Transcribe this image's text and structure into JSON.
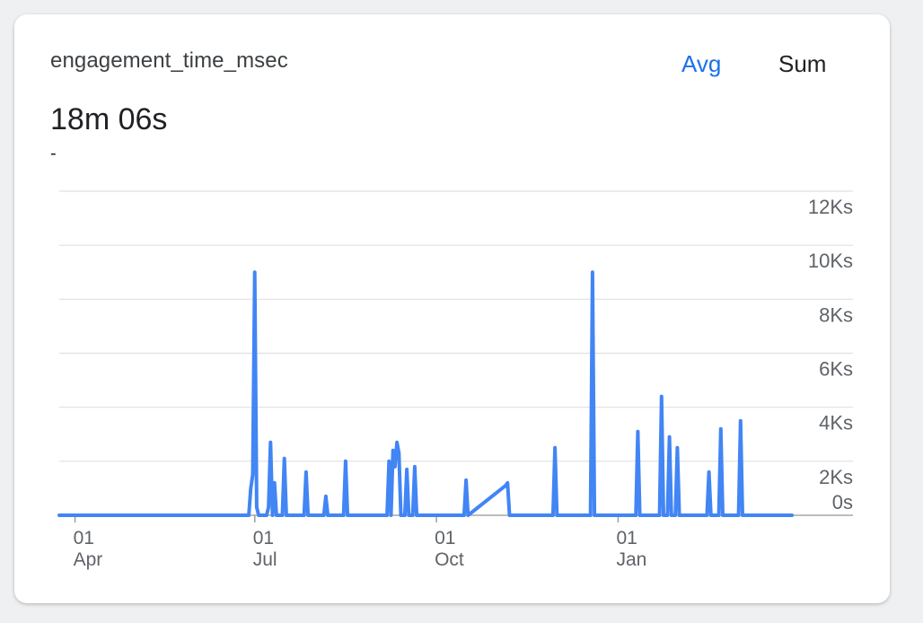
{
  "card": {
    "metric_name": "engagement_time_msec",
    "toggle_avg": "Avg",
    "toggle_sum": "Sum",
    "big_value": "18m 06s",
    "delta": "-"
  },
  "colors": {
    "accent": "#1a73e8",
    "line": "#4285f4",
    "grid": "#e0e0e0",
    "text_muted": "#5f6368",
    "sum_text": "#202124"
  },
  "chart_data": {
    "type": "line",
    "title": "",
    "xlabel": "",
    "ylabel": "",
    "y_unit": "Ks",
    "ylim": [
      0,
      12
    ],
    "y_ticks": [
      {
        "value": 0,
        "label": "0s"
      },
      {
        "value": 2,
        "label": "2Ks"
      },
      {
        "value": 4,
        "label": "4Ks"
      },
      {
        "value": 6,
        "label": "6Ks"
      },
      {
        "value": 8,
        "label": "8Ks"
      },
      {
        "value": 10,
        "label": "10Ks"
      },
      {
        "value": 12,
        "label": "12Ks"
      }
    ],
    "x_ticks": [
      {
        "date": "2023-04-01",
        "day": "01",
        "month": "Apr"
      },
      {
        "date": "2023-07-01",
        "day": "01",
        "month": "Jul"
      },
      {
        "date": "2023-10-01",
        "day": "01",
        "month": "Oct"
      },
      {
        "date": "2024-01-01",
        "day": "01",
        "month": "Jan"
      }
    ],
    "x_range": [
      "2023-03-24",
      "2024-03-29"
    ],
    "grid": true,
    "legend": "none",
    "series": [
      {
        "x": [
          "2023-03-24",
          "2023-06-28",
          "2023-06-29",
          "2023-06-30",
          "2023-07-01",
          "2023-07-02",
          "2023-07-03",
          "2023-07-07",
          "2023-07-08",
          "2023-07-09",
          "2023-07-10",
          "2023-07-11",
          "2023-07-12",
          "2023-07-13",
          "2023-07-15",
          "2023-07-16",
          "2023-07-17",
          "2023-07-26",
          "2023-07-27",
          "2023-07-28",
          "2023-08-05",
          "2023-08-06",
          "2023-08-07",
          "2023-08-15",
          "2023-08-16",
          "2023-08-17",
          "2023-09-06",
          "2023-09-07",
          "2023-09-08",
          "2023-09-09",
          "2023-09-10",
          "2023-09-11",
          "2023-09-12",
          "2023-09-13",
          "2023-09-15",
          "2023-09-16",
          "2023-09-17",
          "2023-09-19",
          "2023-09-20",
          "2023-09-21",
          "2023-10-15",
          "2023-10-16",
          "2023-10-17",
          "2023-11-05",
          "2023-11-06",
          "2023-11-07",
          "2023-11-29",
          "2023-11-30",
          "2023-12-01",
          "2023-12-18",
          "2023-12-19",
          "2023-12-20",
          "2024-01-10",
          "2024-01-11",
          "2024-01-12",
          "2024-01-22",
          "2024-01-23",
          "2024-01-24",
          "2024-01-26",
          "2024-01-27",
          "2024-01-28",
          "2024-01-30",
          "2024-01-31",
          "2024-02-01",
          "2024-02-15",
          "2024-02-16",
          "2024-02-17",
          "2024-02-21",
          "2024-02-22",
          "2024-02-23",
          "2024-03-02",
          "2024-03-03",
          "2024-03-04",
          "2024-03-29"
        ],
        "y": [
          0,
          0,
          1.0,
          1.5,
          9.0,
          0.3,
          0,
          0,
          0.3,
          2.7,
          0,
          1.2,
          0,
          0,
          0,
          2.1,
          0,
          0,
          1.6,
          0,
          0,
          0.7,
          0,
          0,
          2.0,
          0,
          0,
          2.0,
          0,
          2.4,
          1.8,
          2.7,
          2.3,
          0,
          0,
          1.7,
          0,
          0,
          1.8,
          0,
          0,
          1.3,
          0,
          1.1,
          1.2,
          0,
          0,
          2.5,
          0,
          0,
          9.0,
          0,
          0,
          3.1,
          0,
          0,
          4.4,
          0,
          0,
          2.9,
          0,
          0,
          2.5,
          0,
          0,
          1.6,
          0,
          0,
          3.2,
          0,
          0,
          3.5,
          0,
          0
        ]
      }
    ]
  }
}
